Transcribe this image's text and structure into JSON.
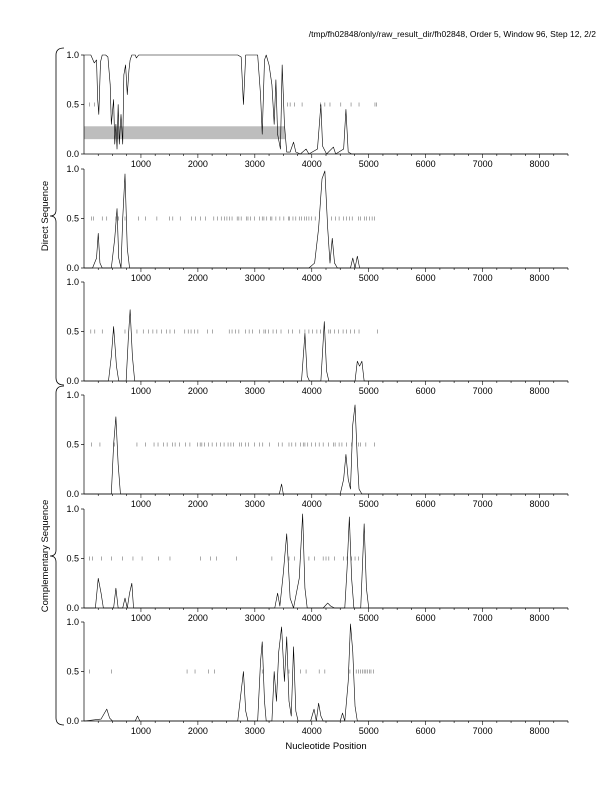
{
  "header": "/tmp/fh02848/only/raw_result_dir/fh02848, Order 5, Window 96, Step 12, 2/2",
  "group_labels": [
    "Direct Sequence",
    "Complementary Sequence"
  ],
  "xlabel": "Nucleotide Position",
  "chart_data": {
    "type": "line",
    "xlim": [
      0,
      8500
    ],
    "ylim": [
      0,
      1
    ],
    "x_ticks": [
      1000,
      2000,
      3000,
      4000,
      5000,
      6000,
      7000,
      8000
    ],
    "y_ticks": [
      0.0,
      0.5,
      1.0
    ],
    "panels": [
      {
        "group": "Direct Sequence",
        "highlight": {
          "x0": 0,
          "x1": 3530,
          "y0": 0.15,
          "y1": 0.28
        },
        "trace": [
          [
            0,
            1.0
          ],
          [
            120,
            1.0
          ],
          [
            180,
            0.92
          ],
          [
            220,
            0.95
          ],
          [
            240,
            0.55
          ],
          [
            260,
            0.4
          ],
          [
            290,
            0.93
          ],
          [
            320,
            1.0
          ],
          [
            380,
            1.0
          ],
          [
            420,
            0.98
          ],
          [
            460,
            0.7
          ],
          [
            480,
            0.3
          ],
          [
            520,
            0.55
          ],
          [
            540,
            0.1
          ],
          [
            560,
            0.3
          ],
          [
            580,
            0.05
          ],
          [
            600,
            0.5
          ],
          [
            620,
            0.1
          ],
          [
            650,
            0.4
          ],
          [
            680,
            0.1
          ],
          [
            700,
            0.8
          ],
          [
            730,
            0.9
          ],
          [
            760,
            0.6
          ],
          [
            790,
            0.85
          ],
          [
            810,
            0.95
          ],
          [
            840,
            1.0
          ],
          [
            900,
            1.0
          ],
          [
            920,
            0.97
          ],
          [
            960,
            1.0
          ],
          [
            2700,
            1.0
          ],
          [
            2760,
            0.98
          ],
          [
            2800,
            0.5
          ],
          [
            2840,
            1.0
          ],
          [
            3050,
            1.0
          ],
          [
            3100,
            0.6
          ],
          [
            3130,
            0.2
          ],
          [
            3170,
            0.95
          ],
          [
            3200,
            1.0
          ],
          [
            3250,
            0.9
          ],
          [
            3300,
            0.7
          ],
          [
            3340,
            0.3
          ],
          [
            3370,
            0.75
          ],
          [
            3400,
            0.2
          ],
          [
            3450,
            0.05
          ],
          [
            3480,
            0.9
          ],
          [
            3520,
            0.3
          ],
          [
            3560,
            0.02
          ],
          [
            3620,
            0.02
          ],
          [
            3680,
            0.12
          ],
          [
            3720,
            0.02
          ],
          [
            3800,
            0.0
          ],
          [
            3900,
            0.05
          ],
          [
            3950,
            0.0
          ],
          [
            4100,
            0.05
          ],
          [
            4160,
            0.5
          ],
          [
            4190,
            0.08
          ],
          [
            4260,
            0.0
          ],
          [
            4380,
            0.07
          ],
          [
            4420,
            0.0
          ],
          [
            4560,
            0.05
          ],
          [
            4600,
            0.45
          ],
          [
            4640,
            0.02
          ],
          [
            4700,
            0.0
          ],
          [
            8500,
            0.0
          ]
        ],
        "rugs": [
          100,
          180,
          3570,
          3620,
          3700,
          3830,
          4150,
          4230,
          4320,
          4510,
          4690,
          4830,
          5110,
          5140
        ]
      },
      {
        "group": "Direct Sequence",
        "trace": [
          [
            0,
            0.0
          ],
          [
            150,
            0.0
          ],
          [
            220,
            0.1
          ],
          [
            250,
            0.35
          ],
          [
            280,
            0.05
          ],
          [
            320,
            0.0
          ],
          [
            480,
            0.0
          ],
          [
            540,
            0.3
          ],
          [
            580,
            0.6
          ],
          [
            610,
            0.1
          ],
          [
            650,
            0.0
          ],
          [
            680,
            0.5
          ],
          [
            720,
            0.95
          ],
          [
            760,
            0.2
          ],
          [
            800,
            0.0
          ],
          [
            3950,
            0.0
          ],
          [
            4050,
            0.05
          ],
          [
            4120,
            0.4
          ],
          [
            4180,
            0.9
          ],
          [
            4230,
            0.98
          ],
          [
            4280,
            0.4
          ],
          [
            4320,
            0.05
          ],
          [
            4360,
            0.3
          ],
          [
            4400,
            0.05
          ],
          [
            4450,
            0.0
          ],
          [
            4680,
            0.0
          ],
          [
            4720,
            0.1
          ],
          [
            4760,
            0.0
          ],
          [
            4800,
            0.12
          ],
          [
            4840,
            0.0
          ],
          [
            8500,
            0.0
          ]
        ],
        "rugs": [
          130,
          170,
          320,
          400,
          560,
          610,
          720,
          960,
          1080,
          1280,
          1500,
          1560,
          1690,
          1890,
          1960,
          2050,
          2130,
          2280,
          2340,
          2410,
          2470,
          2510,
          2560,
          2600,
          2690,
          2720,
          2760,
          2850,
          2880,
          2920,
          2990,
          3080,
          3130,
          3160,
          3210,
          3280,
          3300,
          3370,
          3440,
          3510,
          3590,
          3610,
          3670,
          3720,
          3780,
          3820,
          3870,
          3910,
          3950,
          4000,
          4060,
          4350,
          4420,
          4480,
          4560,
          4610,
          4660,
          4710,
          4820,
          4860,
          4930,
          4960,
          5010,
          5060,
          5100
        ]
      },
      {
        "group": "Direct Sequence",
        "trace": [
          [
            0,
            0.0
          ],
          [
            430,
            0.0
          ],
          [
            480,
            0.25
          ],
          [
            520,
            0.55
          ],
          [
            570,
            0.15
          ],
          [
            610,
            0.0
          ],
          [
            740,
            0.0
          ],
          [
            780,
            0.45
          ],
          [
            810,
            0.72
          ],
          [
            850,
            0.25
          ],
          [
            890,
            0.0
          ],
          [
            3820,
            0.0
          ],
          [
            3880,
            0.48
          ],
          [
            3920,
            0.05
          ],
          [
            3960,
            0.0
          ],
          [
            4160,
            0.0
          ],
          [
            4220,
            0.6
          ],
          [
            4260,
            0.1
          ],
          [
            4300,
            0.0
          ],
          [
            4760,
            0.0
          ],
          [
            4800,
            0.2
          ],
          [
            4840,
            0.15
          ],
          [
            4880,
            0.2
          ],
          [
            4920,
            0.0
          ],
          [
            8500,
            0.0
          ]
        ],
        "rugs": [
          120,
          190,
          320,
          520,
          720,
          930,
          1040,
          1130,
          1210,
          1280,
          1360,
          1450,
          1510,
          1590,
          1770,
          1830,
          1880,
          1940,
          2000,
          2170,
          2260,
          2550,
          2600,
          2660,
          2720,
          2840,
          2900,
          2960,
          3080,
          3160,
          3190,
          3240,
          3320,
          3380,
          3460,
          3590,
          3660,
          3790,
          3880,
          3950,
          4010,
          4090,
          4150,
          4300,
          4330,
          4400,
          4470,
          4550,
          4610,
          4680,
          4750,
          4830,
          5150
        ]
      },
      {
        "group": "Complementary Sequence",
        "trace": [
          [
            0,
            0.0
          ],
          [
            480,
            0.0
          ],
          [
            520,
            0.5
          ],
          [
            560,
            0.78
          ],
          [
            600,
            0.3
          ],
          [
            640,
            0.0
          ],
          [
            3430,
            0.0
          ],
          [
            3470,
            0.1
          ],
          [
            3500,
            0.0
          ],
          [
            4500,
            0.0
          ],
          [
            4560,
            0.15
          ],
          [
            4600,
            0.4
          ],
          [
            4640,
            0.15
          ],
          [
            4680,
            0.05
          ],
          [
            4720,
            0.7
          ],
          [
            4760,
            0.9
          ],
          [
            4800,
            0.35
          ],
          [
            4830,
            0.05
          ],
          [
            4880,
            0.0
          ],
          [
            8500,
            0.0
          ]
        ],
        "rugs": [
          130,
          280,
          540,
          930,
          1080,
          1230,
          1300,
          1400,
          1460,
          1550,
          1600,
          1680,
          1780,
          1860,
          1990,
          2040,
          2070,
          2120,
          2190,
          2250,
          2330,
          2400,
          2460,
          2530,
          2580,
          2630,
          2730,
          2770,
          2840,
          2890,
          2990,
          3080,
          3140,
          3260,
          3420,
          3480,
          3600,
          3650,
          3720,
          3800,
          3850,
          3880,
          3930,
          4000,
          4070,
          4130,
          4200,
          4290,
          4380,
          4410,
          4480,
          4530,
          4610,
          4700,
          4790,
          4820,
          4860,
          4950,
          5100
        ]
      },
      {
        "group": "Complementary Sequence",
        "trace": [
          [
            0,
            0.0
          ],
          [
            200,
            0.0
          ],
          [
            250,
            0.3
          ],
          [
            300,
            0.15
          ],
          [
            340,
            0.0
          ],
          [
            520,
            0.0
          ],
          [
            560,
            0.2
          ],
          [
            600,
            0.0
          ],
          [
            680,
            0.0
          ],
          [
            720,
            0.1
          ],
          [
            760,
            0.0
          ],
          [
            800,
            0.15
          ],
          [
            840,
            0.25
          ],
          [
            870,
            0.0
          ],
          [
            3350,
            0.0
          ],
          [
            3400,
            0.15
          ],
          [
            3440,
            0.02
          ],
          [
            3500,
            0.35
          ],
          [
            3560,
            0.75
          ],
          [
            3620,
            0.1
          ],
          [
            3680,
            0.0
          ],
          [
            3780,
            0.3
          ],
          [
            3840,
            0.95
          ],
          [
            3880,
            0.2
          ],
          [
            3920,
            0.0
          ],
          [
            4200,
            0.0
          ],
          [
            4280,
            0.05
          ],
          [
            4330,
            0.02
          ],
          [
            4400,
            0.0
          ],
          [
            4580,
            0.0
          ],
          [
            4620,
            0.4
          ],
          [
            4660,
            0.92
          ],
          [
            4700,
            0.3
          ],
          [
            4740,
            0.0
          ],
          [
            4860,
            0.0
          ],
          [
            4920,
            0.85
          ],
          [
            4960,
            0.2
          ],
          [
            5000,
            0.0
          ],
          [
            8500,
            0.0
          ]
        ],
        "rugs": [
          100,
          150,
          310,
          480,
          680,
          860,
          1020,
          1310,
          1510,
          2050,
          2220,
          2330,
          2680,
          3300,
          3600,
          3700,
          3950,
          4050,
          4200,
          4250,
          4300,
          4400,
          4560,
          4620,
          4700,
          4760,
          4820
        ]
      },
      {
        "group": "Complementary Sequence",
        "trace": [
          [
            0,
            0.0
          ],
          [
            300,
            0.02
          ],
          [
            400,
            0.12
          ],
          [
            450,
            0.03
          ],
          [
            500,
            0.0
          ],
          [
            900,
            0.0
          ],
          [
            940,
            0.05
          ],
          [
            980,
            0.0
          ],
          [
            2700,
            0.0
          ],
          [
            2760,
            0.3
          ],
          [
            2800,
            0.5
          ],
          [
            2840,
            0.1
          ],
          [
            2880,
            0.0
          ],
          [
            3050,
            0.0
          ],
          [
            3100,
            0.6
          ],
          [
            3130,
            0.8
          ],
          [
            3170,
            0.2
          ],
          [
            3200,
            0.0
          ],
          [
            3300,
            0.0
          ],
          [
            3340,
            0.5
          ],
          [
            3380,
            0.2
          ],
          [
            3420,
            0.7
          ],
          [
            3470,
            0.95
          ],
          [
            3520,
            0.4
          ],
          [
            3560,
            0.85
          ],
          [
            3600,
            0.2
          ],
          [
            3640,
            0.05
          ],
          [
            3680,
            0.75
          ],
          [
            3720,
            0.1
          ],
          [
            3760,
            0.0
          ],
          [
            3980,
            0.0
          ],
          [
            4040,
            0.12
          ],
          [
            4080,
            0.0
          ],
          [
            4120,
            0.18
          ],
          [
            4160,
            0.05
          ],
          [
            4200,
            0.0
          ],
          [
            4500,
            0.0
          ],
          [
            4540,
            0.08
          ],
          [
            4580,
            0.0
          ],
          [
            4640,
            0.4
          ],
          [
            4680,
            0.98
          ],
          [
            4720,
            0.7
          ],
          [
            4760,
            0.15
          ],
          [
            4800,
            0.0
          ],
          [
            8500,
            0.0
          ]
        ],
        "rugs": [
          100,
          480,
          1810,
          1950,
          2190,
          2290,
          3130,
          3600,
          3800,
          3900,
          4130,
          4230,
          4670,
          4780,
          4820,
          4860,
          4890,
          4920,
          4950,
          4980,
          5010,
          5040,
          5080
        ]
      }
    ]
  }
}
